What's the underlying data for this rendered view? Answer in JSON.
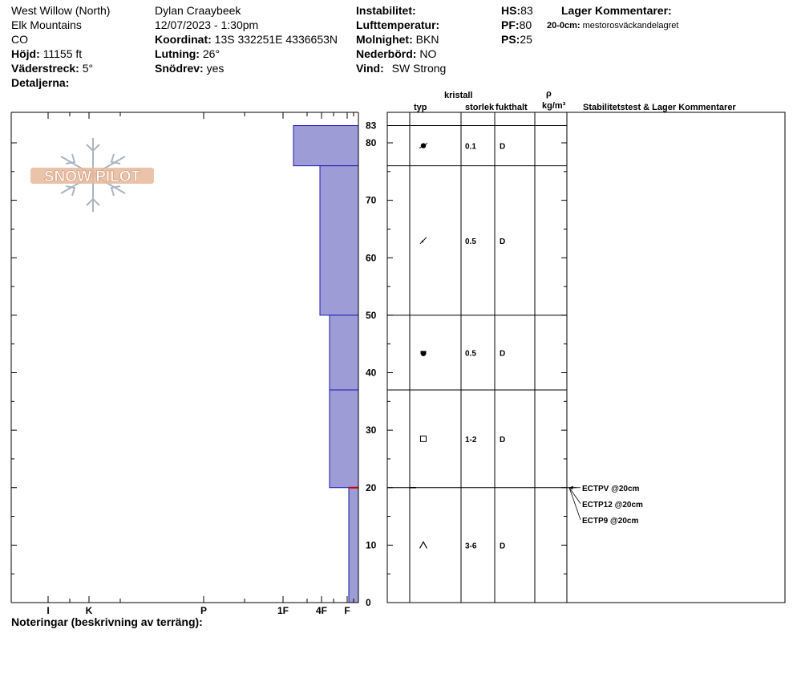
{
  "header": {
    "col1": {
      "location": "West Willow (North)",
      "range": "Elk Mountains",
      "state": "CO",
      "elevation_label": "Höjd:",
      "elevation": "11155 ft",
      "aspect_label": "Väderstreck:",
      "aspect": "5°",
      "details_label": "Detaljerna:"
    },
    "col2": {
      "observer": "Dylan Craaybeek",
      "datetime": "12/07/2023 - 1:30pm",
      "coord_label": "Koordinat:",
      "coord": "13S 332251E 4336653N",
      "slope_label": "Lutning:",
      "slope": "26°",
      "drift_label": "Snödrev:",
      "drift": "yes"
    },
    "col3": {
      "instability_label": "Instabilitet:",
      "airtemp_label": "Lufttemperatur:",
      "sky_label": "Molnighet:",
      "sky": "BKN",
      "precip_label": "Nederbörd:",
      "precip": "NO",
      "wind_label": "Vind:",
      "wind": "SW Strong"
    },
    "col4": {
      "hs_label": "HS:",
      "hs": "83",
      "pf_label": "PF:",
      "pf": "80",
      "ps_label": "PS:",
      "ps": "25"
    },
    "layer_comments": {
      "title": "Lager Kommentarer:",
      "entry_label": "20-0cm:",
      "entry_text": "mestorosväckandelagret"
    }
  },
  "logo_text": "SNOW PILOT",
  "notes_label": "Noteringar (beskrivning av terräng):",
  "columns": {
    "crystal": "kristall",
    "type": "typ",
    "size": "storlek",
    "moisture": "fukthalt",
    "rho": "ρ",
    "density_unit": "kg/m³",
    "stability": "Stabilitetstest & Lager Kommentarer"
  },
  "colors": {
    "bar_fill": "#9d9cd6",
    "bar_stroke": "#1a1ab5",
    "test_line": "#cc0000",
    "axis": "#000000"
  },
  "chart_data": {
    "type": "bar",
    "title": "",
    "ylim": [
      0,
      83
    ],
    "yticks": [
      0,
      10,
      20,
      30,
      40,
      50,
      60,
      70,
      80
    ],
    "top_label": "83",
    "hardness_ticks": [
      "I",
      "K",
      "P",
      "1F",
      "4F",
      "F"
    ],
    "hardness_scale_note": "hardness bars grow leftward from the right axis; F = fist (softest) at the right, I = ice at the left",
    "layers": [
      {
        "top": 83,
        "bottom": 76,
        "hardness": "1F-",
        "crystal": "rounded-facet-icon",
        "size": "0.1",
        "moisture": "D"
      },
      {
        "top": 76,
        "bottom": 50,
        "hardness": "4F+",
        "crystal": "decomposing-icon",
        "size": "0.5",
        "moisture": "D"
      },
      {
        "top": 50,
        "bottom": 37,
        "hardness": "4F",
        "crystal": "melt-form-icon",
        "size": "0.5",
        "moisture": "D"
      },
      {
        "top": 37,
        "bottom": 20,
        "hardness": "4F",
        "crystal": "faceted-icon",
        "size": "1-2",
        "moisture": "D"
      },
      {
        "top": 20,
        "bottom": 0,
        "hardness": "F+",
        "crystal": "depth-hoar-icon",
        "size": "3-6",
        "moisture": "D"
      }
    ],
    "tests": [
      {
        "depth": 20,
        "label": "ECTPV @20cm"
      },
      {
        "depth": 20,
        "label": "ECTP12 @20cm"
      },
      {
        "depth": 20,
        "label": "ECTP9 @20cm"
      }
    ]
  }
}
